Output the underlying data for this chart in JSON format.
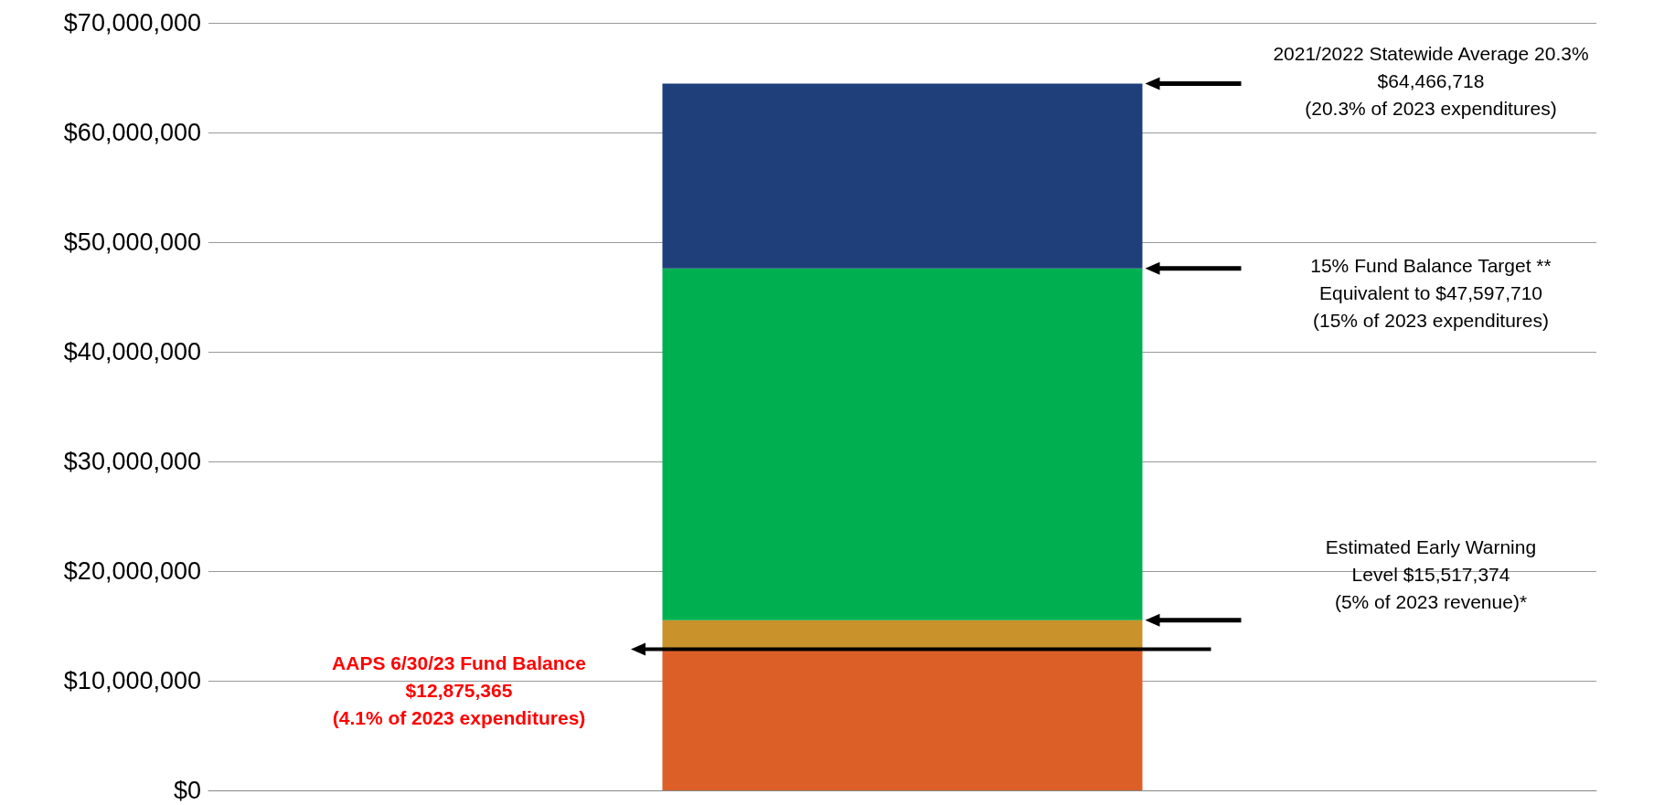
{
  "chart_data": {
    "type": "bar",
    "stacked": true,
    "categories": [
      null
    ],
    "series": [
      {
        "color": "#dd5f28",
        "values": [
          12875365
        ]
      },
      {
        "color": "#c9922a",
        "values": [
          2642009
        ]
      },
      {
        "color": "#00b050",
        "values": [
          32080336
        ]
      },
      {
        "color": "#1f3f7a",
        "values": [
          16869008
        ]
      }
    ],
    "ylim": [
      0,
      70000000
    ],
    "yticks": [
      {
        "value": 0,
        "label": "$0"
      },
      {
        "value": 10000000,
        "label": "$10,000,000"
      },
      {
        "value": 20000000,
        "label": "$20,000,000"
      },
      {
        "value": 30000000,
        "label": "$30,000,000"
      },
      {
        "value": 40000000,
        "label": "$40,000,000"
      },
      {
        "value": 50000000,
        "label": "$50,000,000"
      },
      {
        "value": 60000000,
        "label": "$60,000,000"
      },
      {
        "value": 70000000,
        "label": "$70,000,000"
      }
    ],
    "grid": "y",
    "annotations": [
      "2021/2022 Statewide Average 20.3%\n$64,466,718\n(20.3% of 2023 expenditures)",
      "15% Fund Balance Target **\nEquivalent to $47,597,710\n(15% of 2023 expenditures)",
      "Estimated Early Warning\nLevel $15,517,374\n(5% of 2023 revenue)*",
      "AAPS 6/30/23 Fund Balance\n$12,875,365\n(4.1% of 2023 expenditures)"
    ]
  }
}
